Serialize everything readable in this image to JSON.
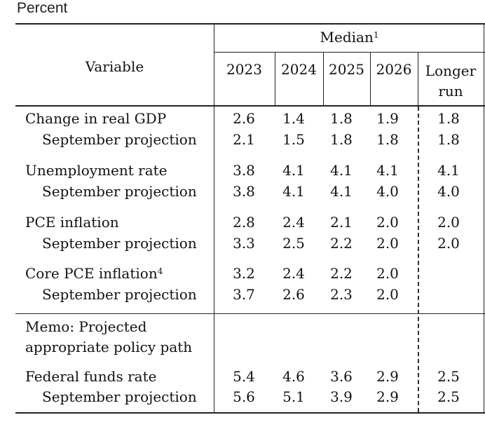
{
  "unit_label": "Percent",
  "header": {
    "variable": "Variable",
    "median": "Median",
    "median_note": "1",
    "years": [
      "2023",
      "2024",
      "2025",
      "2026"
    ],
    "longer_run_line1": "Longer",
    "longer_run_line2": "run"
  },
  "rows": [
    {
      "label": "Change in real GDP",
      "note": "",
      "values": [
        "2.6",
        "1.4",
        "1.8",
        "1.9",
        "1.8"
      ]
    },
    {
      "label": "September projection",
      "note": "",
      "values": [
        "2.1",
        "1.5",
        "1.8",
        "1.8",
        "1.8"
      ]
    },
    {
      "label": "Unemployment rate",
      "note": "",
      "values": [
        "3.8",
        "4.1",
        "4.1",
        "4.1",
        "4.1"
      ]
    },
    {
      "label": "September projection",
      "note": "",
      "values": [
        "3.8",
        "4.1",
        "4.1",
        "4.0",
        "4.0"
      ]
    },
    {
      "label": "PCE inflation",
      "note": "",
      "values": [
        "2.8",
        "2.4",
        "2.1",
        "2.0",
        "2.0"
      ]
    },
    {
      "label": "September projection",
      "note": "",
      "values": [
        "3.3",
        "2.5",
        "2.2",
        "2.0",
        "2.0"
      ]
    },
    {
      "label": "Core PCE inflation",
      "note": "4",
      "values": [
        "3.2",
        "2.4",
        "2.2",
        "2.0",
        ""
      ]
    },
    {
      "label": "September projection",
      "note": "",
      "values": [
        "3.7",
        "2.6",
        "2.3",
        "2.0",
        ""
      ]
    }
  ],
  "memo": {
    "line1": "Memo: Projected",
    "line2": "appropriate policy path"
  },
  "memo_rows": [
    {
      "label": "Federal funds rate",
      "values": [
        "5.4",
        "4.6",
        "3.6",
        "2.9",
        "2.5"
      ]
    },
    {
      "label": "September projection",
      "values": [
        "5.6",
        "5.1",
        "3.9",
        "2.9",
        "2.5"
      ]
    }
  ]
}
